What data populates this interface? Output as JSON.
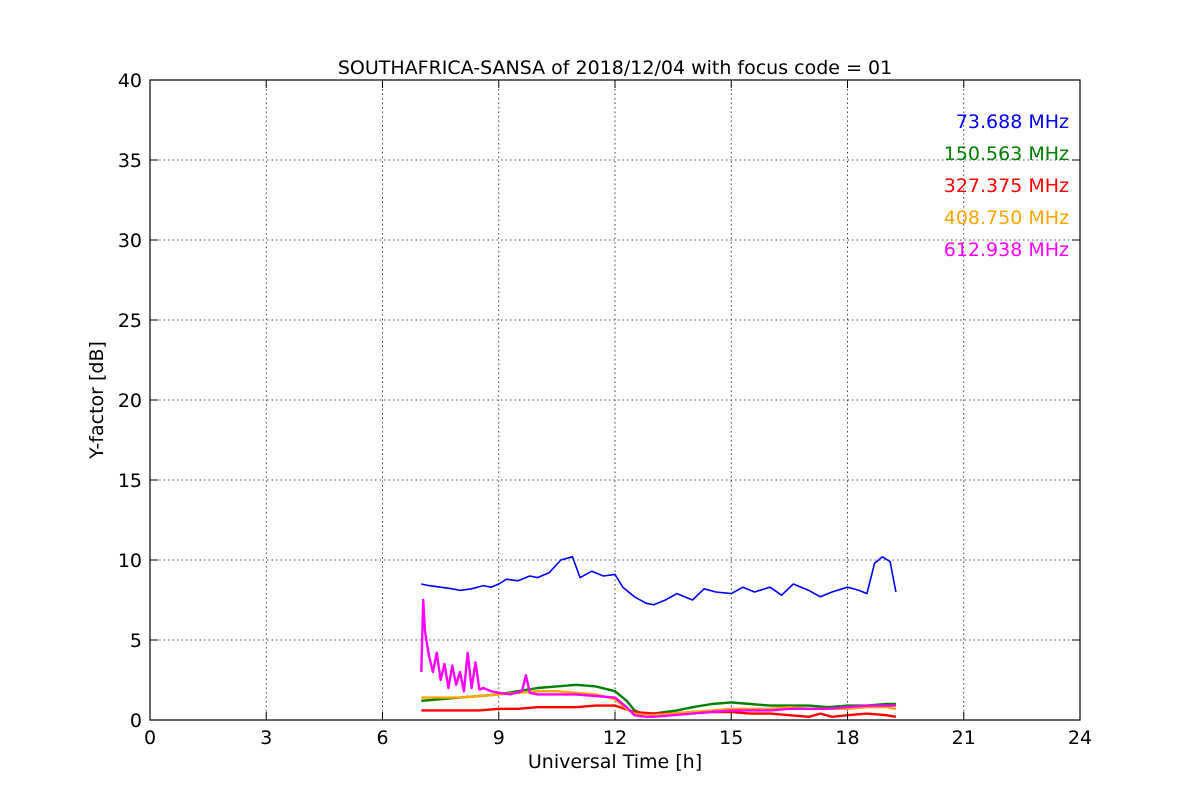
{
  "chart_data": {
    "type": "line",
    "title": "SOUTHAFRICA-SANSA of 2018/12/04 with focus code = 01",
    "xlabel": "Universal Time [h]",
    "ylabel": "Y-factor [dB]",
    "xlim": [
      0,
      24
    ],
    "ylim": [
      0,
      40
    ],
    "xticks": [
      0,
      3,
      6,
      9,
      12,
      15,
      18,
      21,
      24
    ],
    "yticks": [
      0,
      5,
      10,
      15,
      20,
      25,
      30,
      35,
      40
    ],
    "grid": true,
    "legend_position": "top-right",
    "series": [
      {
        "name": "73.688 MHz",
        "color": "#0000ff",
        "x": [
          7.0,
          7.2,
          7.5,
          7.8,
          8.0,
          8.3,
          8.6,
          8.8,
          9.0,
          9.2,
          9.5,
          9.8,
          10.0,
          10.3,
          10.6,
          10.9,
          11.1,
          11.4,
          11.7,
          12.0,
          12.2,
          12.5,
          12.8,
          13.0,
          13.3,
          13.6,
          14.0,
          14.3,
          14.6,
          15.0,
          15.3,
          15.6,
          16.0,
          16.3,
          16.6,
          17.0,
          17.3,
          17.6,
          18.0,
          18.3,
          18.5,
          18.7,
          18.9,
          19.1,
          19.25
        ],
        "y": [
          8.5,
          8.4,
          8.3,
          8.2,
          8.1,
          8.2,
          8.4,
          8.3,
          8.5,
          8.8,
          8.7,
          9.0,
          8.9,
          9.2,
          10.0,
          10.2,
          8.9,
          9.3,
          9.0,
          9.1,
          8.3,
          7.7,
          7.3,
          7.2,
          7.5,
          7.9,
          7.5,
          8.2,
          8.0,
          7.9,
          8.3,
          8.0,
          8.3,
          7.8,
          8.5,
          8.1,
          7.7,
          8.0,
          8.3,
          8.1,
          7.9,
          9.8,
          10.2,
          9.9,
          8.0
        ]
      },
      {
        "name": "150.563 MHz",
        "color": "#008000",
        "x": [
          7.0,
          7.5,
          8.0,
          8.5,
          9.0,
          9.5,
          10.0,
          10.5,
          11.0,
          11.5,
          12.0,
          12.3,
          12.5,
          12.7,
          13.0,
          13.3,
          13.6,
          14.0,
          14.5,
          15.0,
          15.5,
          16.0,
          16.5,
          17.0,
          17.5,
          18.0,
          18.5,
          19.0,
          19.25
        ],
        "y": [
          1.2,
          1.3,
          1.4,
          1.5,
          1.6,
          1.8,
          2.0,
          2.1,
          2.2,
          2.1,
          1.8,
          1.2,
          0.6,
          0.4,
          0.4,
          0.5,
          0.6,
          0.8,
          1.0,
          1.1,
          1.0,
          0.9,
          0.9,
          0.9,
          0.8,
          0.9,
          0.9,
          1.0,
          1.0
        ]
      },
      {
        "name": "327.375 MHz",
        "color": "#ff0000",
        "x": [
          7.0,
          7.5,
          8.0,
          8.5,
          9.0,
          9.5,
          10.0,
          10.5,
          11.0,
          11.5,
          12.0,
          12.5,
          13.0,
          13.5,
          14.0,
          14.5,
          15.0,
          15.5,
          16.0,
          16.5,
          17.0,
          17.3,
          17.6,
          18.0,
          18.5,
          19.0,
          19.25
        ],
        "y": [
          0.6,
          0.6,
          0.6,
          0.6,
          0.7,
          0.7,
          0.8,
          0.8,
          0.8,
          0.9,
          0.9,
          0.5,
          0.4,
          0.4,
          0.5,
          0.5,
          0.5,
          0.4,
          0.4,
          0.3,
          0.2,
          0.4,
          0.2,
          0.3,
          0.4,
          0.3,
          0.2
        ]
      },
      {
        "name": "408.750 MHz",
        "color": "#ffa500",
        "x": [
          7.0,
          7.5,
          8.0,
          8.5,
          9.0,
          9.5,
          10.0,
          10.5,
          11.0,
          11.5,
          12.0,
          12.3,
          12.5,
          12.8,
          13.0,
          13.5,
          14.0,
          14.5,
          15.0,
          15.5,
          16.0,
          16.5,
          17.0,
          17.5,
          18.0,
          18.5,
          19.0,
          19.25
        ],
        "y": [
          1.4,
          1.4,
          1.4,
          1.5,
          1.6,
          1.7,
          1.8,
          1.8,
          1.7,
          1.6,
          1.3,
          0.7,
          0.4,
          0.3,
          0.3,
          0.4,
          0.5,
          0.6,
          0.7,
          0.7,
          0.7,
          0.8,
          0.7,
          0.7,
          0.7,
          0.8,
          0.8,
          0.7
        ]
      },
      {
        "name": "612.938 MHz",
        "color": "#ff00ff",
        "x": [
          7.0,
          7.05,
          7.1,
          7.2,
          7.3,
          7.4,
          7.5,
          7.6,
          7.7,
          7.8,
          7.9,
          8.0,
          8.1,
          8.2,
          8.3,
          8.4,
          8.5,
          8.6,
          8.8,
          9.0,
          9.3,
          9.6,
          9.7,
          9.8,
          10.0,
          10.5,
          11.0,
          11.5,
          12.0,
          12.3,
          12.5,
          12.8,
          13.0,
          13.5,
          14.0,
          14.5,
          15.0,
          15.5,
          16.0,
          16.5,
          17.0,
          17.5,
          18.0,
          18.5,
          19.0,
          19.25
        ],
        "y": [
          3.0,
          7.5,
          5.5,
          4.0,
          3.0,
          4.2,
          2.5,
          3.5,
          2.0,
          3.4,
          2.2,
          3.0,
          1.8,
          4.2,
          2.0,
          3.6,
          1.9,
          2.0,
          1.8,
          1.7,
          1.6,
          1.8,
          2.8,
          1.7,
          1.6,
          1.6,
          1.6,
          1.5,
          1.4,
          0.8,
          0.3,
          0.2,
          0.2,
          0.3,
          0.4,
          0.5,
          0.6,
          0.6,
          0.6,
          0.7,
          0.7,
          0.7,
          0.8,
          0.9,
          0.9,
          0.9
        ]
      }
    ]
  }
}
